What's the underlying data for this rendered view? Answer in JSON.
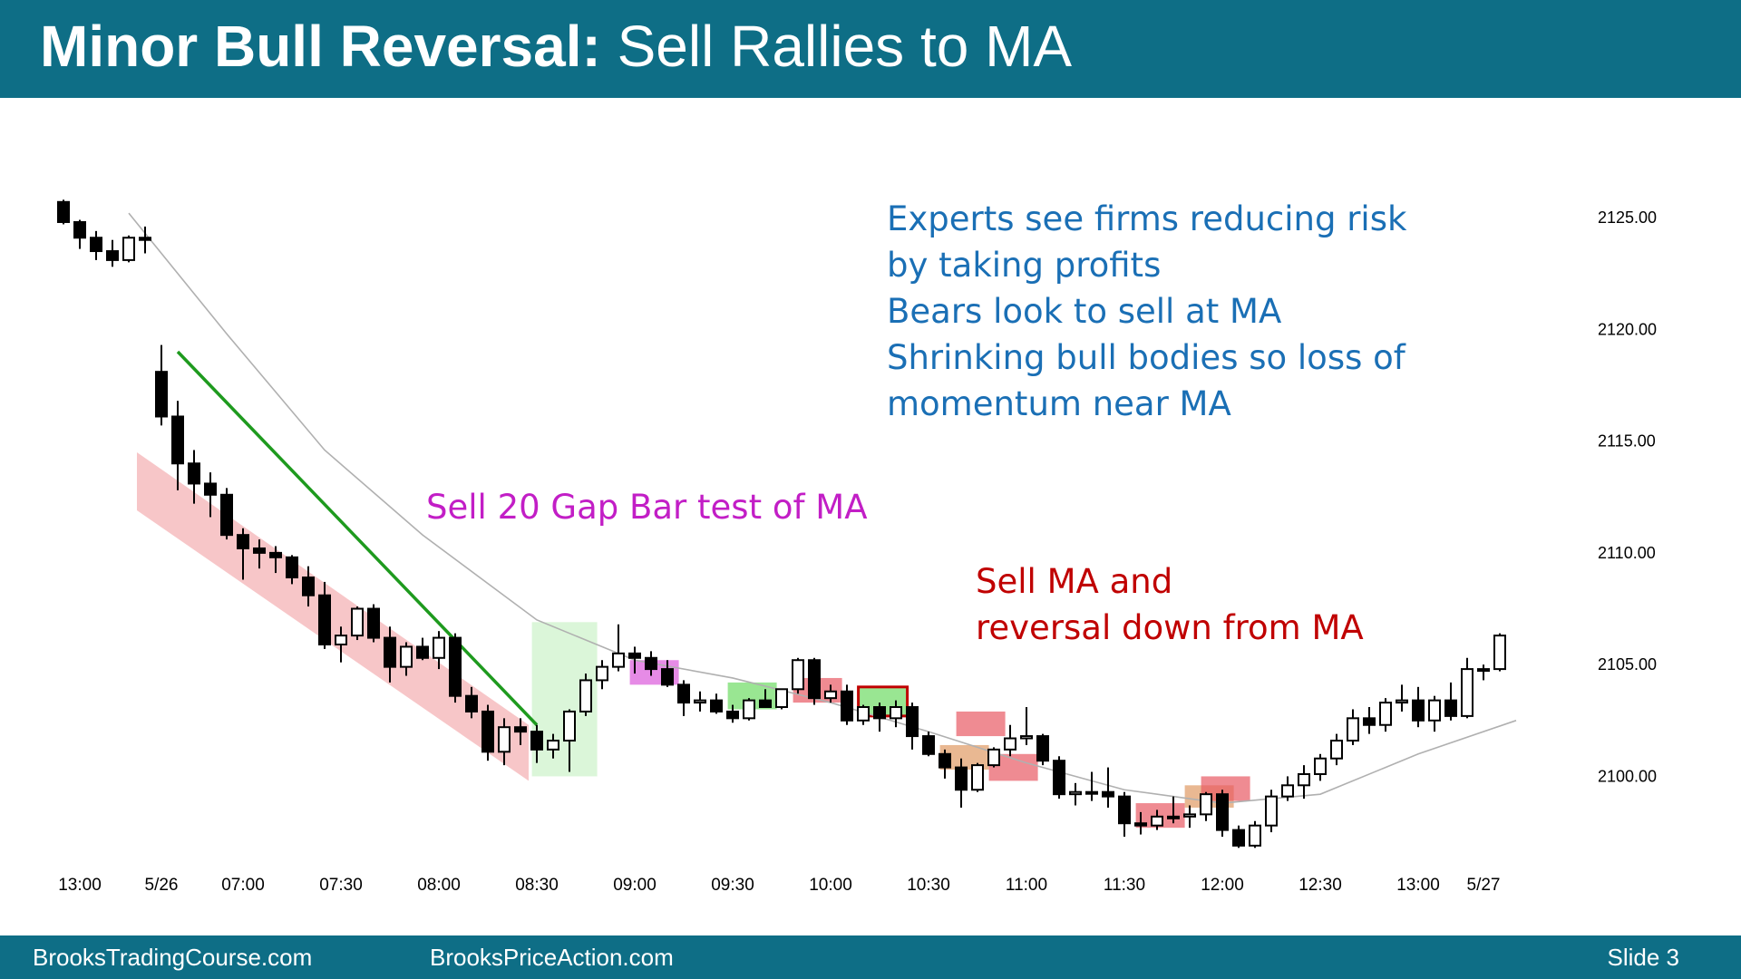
{
  "slide": {
    "title_bold": "Minor Bull Reversal:",
    "title_rest": " Sell Rallies to MA",
    "footer_left": "BrooksTradingCourse.com",
    "footer_mid": "BrooksPriceAction.com",
    "footer_right": "Slide  3",
    "colors": {
      "header": "#0e6e86",
      "annotation_blue": "#1a6fb5",
      "annotation_magenta": "#c21ec6",
      "annotation_red": "#c00000",
      "trendline": "#1e9a1e",
      "ma": "#b0b0b0"
    }
  },
  "annotations": {
    "experts": [
      "Experts see firms reducing risk",
      "by taking profits",
      "Bears look to sell at MA",
      "Shrinking bull bodies so loss of",
      "momentum near MA"
    ],
    "gap_bar": "Sell 20 Gap Bar test of MA",
    "sell_ma": [
      "Sell MA and",
      "reversal down from MA"
    ]
  },
  "chart_data": {
    "type": "candlestick",
    "y_ticks": [
      "2125.00",
      "2120.00",
      "2115.00",
      "2110.00",
      "2105.00",
      "2100.00"
    ],
    "ylim": [
      2095.8,
      2126.3
    ],
    "x_ticks": [
      {
        "label": "13:00",
        "bar": 1
      },
      {
        "label": "5/26",
        "bar": 6
      },
      {
        "label": "07:00",
        "bar": 11
      },
      {
        "label": "07:30",
        "bar": 17
      },
      {
        "label": "08:00",
        "bar": 23
      },
      {
        "label": "08:30",
        "bar": 29
      },
      {
        "label": "09:00",
        "bar": 35
      },
      {
        "label": "09:30",
        "bar": 41
      },
      {
        "label": "10:00",
        "bar": 47
      },
      {
        "label": "10:30",
        "bar": 53
      },
      {
        "label": "11:00",
        "bar": 59
      },
      {
        "label": "11:30",
        "bar": 65
      },
      {
        "label": "12:00",
        "bar": 71
      },
      {
        "label": "12:30",
        "bar": 77
      },
      {
        "label": "13:00",
        "bar": 83
      },
      {
        "label": "5/27",
        "bar": 87
      }
    ],
    "ohlc": [
      [
        2125.7,
        2125.8,
        2124.7,
        2124.8
      ],
      [
        2124.8,
        2124.9,
        2123.6,
        2124.1
      ],
      [
        2124.1,
        2124.4,
        2123.1,
        2123.5
      ],
      [
        2123.5,
        2124.0,
        2122.8,
        2123.1
      ],
      [
        2123.1,
        2124.2,
        2123.0,
        2124.1
      ],
      [
        2124.1,
        2124.6,
        2123.4,
        2124.0
      ],
      [
        2118.1,
        2119.3,
        2115.7,
        2116.1
      ],
      [
        2116.1,
        2116.8,
        2112.8,
        2114.0
      ],
      [
        2114.0,
        2114.6,
        2112.2,
        2113.1
      ],
      [
        2113.1,
        2113.6,
        2111.6,
        2112.6
      ],
      [
        2112.6,
        2112.9,
        2110.6,
        2110.8
      ],
      [
        2110.8,
        2111.1,
        2108.8,
        2110.2
      ],
      [
        2110.2,
        2110.6,
        2109.3,
        2110.0
      ],
      [
        2110.0,
        2110.3,
        2109.1,
        2109.8
      ],
      [
        2109.8,
        2109.9,
        2108.6,
        2108.9
      ],
      [
        2108.9,
        2109.4,
        2107.6,
        2108.1
      ],
      [
        2108.1,
        2108.7,
        2105.7,
        2105.9
      ],
      [
        2105.9,
        2106.7,
        2105.1,
        2106.3
      ],
      [
        2106.3,
        2107.6,
        2106.1,
        2107.5
      ],
      [
        2107.5,
        2107.7,
        2106.0,
        2106.2
      ],
      [
        2106.2,
        2106.7,
        2104.2,
        2104.9
      ],
      [
        2104.9,
        2106.0,
        2104.5,
        2105.8
      ],
      [
        2105.8,
        2106.2,
        2105.2,
        2105.3
      ],
      [
        2105.3,
        2106.5,
        2104.8,
        2106.2
      ],
      [
        2106.2,
        2106.4,
        2103.3,
        2103.6
      ],
      [
        2103.6,
        2104.0,
        2102.6,
        2102.9
      ],
      [
        2102.9,
        2103.2,
        2100.7,
        2101.1
      ],
      [
        2101.1,
        2102.6,
        2100.5,
        2102.2
      ],
      [
        2102.2,
        2102.6,
        2101.4,
        2102.0
      ],
      [
        2102.0,
        2102.3,
        2100.6,
        2101.2
      ],
      [
        2101.2,
        2101.9,
        2100.8,
        2101.6
      ],
      [
        2101.6,
        2103.0,
        2100.2,
        2102.9
      ],
      [
        2102.9,
        2104.6,
        2102.7,
        2104.3
      ],
      [
        2104.3,
        2105.2,
        2103.9,
        2104.9
      ],
      [
        2104.9,
        2106.8,
        2104.7,
        2105.5
      ],
      [
        2105.5,
        2105.8,
        2104.6,
        2105.3
      ],
      [
        2105.3,
        2105.6,
        2104.5,
        2104.8
      ],
      [
        2104.8,
        2105.2,
        2104.0,
        2104.1
      ],
      [
        2104.1,
        2104.3,
        2102.7,
        2103.3
      ],
      [
        2103.3,
        2103.8,
        2102.9,
        2103.4
      ],
      [
        2103.4,
        2103.7,
        2102.8,
        2102.9
      ],
      [
        2102.9,
        2103.2,
        2102.4,
        2102.6
      ],
      [
        2102.6,
        2103.5,
        2102.5,
        2103.4
      ],
      [
        2103.4,
        2103.9,
        2103.1,
        2103.1
      ],
      [
        2103.1,
        2103.9,
        2103.0,
        2103.9
      ],
      [
        2103.9,
        2105.3,
        2103.7,
        2105.2
      ],
      [
        2105.2,
        2105.3,
        2103.2,
        2103.5
      ],
      [
        2103.5,
        2104.1,
        2103.3,
        2103.8
      ],
      [
        2103.8,
        2104.1,
        2102.3,
        2102.5
      ],
      [
        2102.5,
        2103.2,
        2102.3,
        2103.1
      ],
      [
        2103.1,
        2103.3,
        2102.0,
        2102.6
      ],
      [
        2102.6,
        2103.4,
        2102.2,
        2103.1
      ],
      [
        2103.1,
        2103.3,
        2101.2,
        2101.8
      ],
      [
        2101.8,
        2102.0,
        2100.9,
        2101.0
      ],
      [
        2101.0,
        2101.2,
        2099.9,
        2100.4
      ],
      [
        2100.4,
        2100.8,
        2098.6,
        2099.4
      ],
      [
        2099.4,
        2100.6,
        2099.3,
        2100.5
      ],
      [
        2100.5,
        2101.3,
        2100.4,
        2101.2
      ],
      [
        2101.2,
        2102.3,
        2100.9,
        2101.7
      ],
      [
        2101.7,
        2103.1,
        2101.4,
        2101.8
      ],
      [
        2101.8,
        2101.9,
        2100.5,
        2100.7
      ],
      [
        2100.7,
        2100.9,
        2099.0,
        2099.2
      ],
      [
        2099.2,
        2099.7,
        2098.7,
        2099.3
      ],
      [
        2099.3,
        2100.2,
        2098.9,
        2099.3
      ],
      [
        2099.3,
        2100.4,
        2098.6,
        2099.1
      ],
      [
        2099.1,
        2099.3,
        2097.3,
        2097.9
      ],
      [
        2097.9,
        2098.4,
        2097.4,
        2097.8
      ],
      [
        2097.8,
        2098.5,
        2097.6,
        2098.2
      ],
      [
        2098.2,
        2099.1,
        2097.9,
        2098.2
      ],
      [
        2098.2,
        2098.7,
        2097.7,
        2098.3
      ],
      [
        2098.3,
        2099.3,
        2098.0,
        2099.2
      ],
      [
        2099.2,
        2099.4,
        2097.3,
        2097.6
      ],
      [
        2097.6,
        2097.8,
        2096.8,
        2096.9
      ],
      [
        2096.9,
        2098.0,
        2096.8,
        2097.8
      ],
      [
        2097.8,
        2099.4,
        2097.5,
        2099.1
      ],
      [
        2099.1,
        2100.0,
        2098.9,
        2099.6
      ],
      [
        2099.6,
        2100.5,
        2099.0,
        2100.1
      ],
      [
        2100.1,
        2101.0,
        2099.8,
        2100.8
      ],
      [
        2100.8,
        2101.9,
        2100.5,
        2101.6
      ],
      [
        2101.6,
        2103.0,
        2101.4,
        2102.6
      ],
      [
        2102.6,
        2103.1,
        2101.9,
        2102.3
      ],
      [
        2102.3,
        2103.5,
        2102.0,
        2103.3
      ],
      [
        2103.3,
        2104.1,
        2102.9,
        2103.4
      ],
      [
        2103.4,
        2104.0,
        2102.2,
        2102.5
      ],
      [
        2102.5,
        2103.6,
        2102.0,
        2103.4
      ],
      [
        2103.4,
        2104.2,
        2102.5,
        2102.7
      ],
      [
        2102.7,
        2105.3,
        2102.6,
        2104.8
      ],
      [
        2104.8,
        2105.0,
        2104.3,
        2104.8
      ],
      [
        2104.8,
        2106.4,
        2104.7,
        2106.3
      ]
    ],
    "moving_average": [
      [
        4,
        2125.2
      ],
      [
        10,
        2119.8
      ],
      [
        16,
        2114.6
      ],
      [
        22,
        2110.8
      ],
      [
        29,
        2107.0
      ],
      [
        35,
        2105.2
      ],
      [
        41,
        2104.4
      ],
      [
        47,
        2103.3
      ],
      [
        53,
        2102.0
      ],
      [
        59,
        2100.6
      ],
      [
        65,
        2099.4
      ],
      [
        71,
        2098.8
      ],
      [
        77,
        2099.2
      ],
      [
        83,
        2101.0
      ],
      [
        89,
        2102.5
      ]
    ],
    "trendline": [
      [
        7,
        2119.0
      ],
      [
        29,
        2102.3
      ]
    ],
    "highlights": [
      {
        "color": "red",
        "from_bar": 4.5,
        "to_bar": 28.5,
        "high_start": 2114.5,
        "low_start": 2111.9,
        "high_end": 2102.3,
        "low_end": 2099.8
      },
      {
        "color": "green",
        "from_bar": 28.7,
        "to_bar": 32.7,
        "high": 2106.9,
        "low": 2100.0
      },
      {
        "color": "magenta",
        "from_bar": 34.7,
        "to_bar": 37.7,
        "high": 2105.2,
        "low": 2104.1
      },
      {
        "color": "green",
        "from_bar": 40.7,
        "to_bar": 43.7,
        "high": 2104.2,
        "low": 2103.0
      },
      {
        "color": "red",
        "from_bar": 44.7,
        "to_bar": 47.7,
        "high": 2104.4,
        "low": 2103.3
      },
      {
        "color": "green",
        "from_bar": 48.7,
        "to_bar": 51.7,
        "high": 2104.0,
        "low": 2102.7,
        "outline": true
      },
      {
        "color": "orange",
        "from_bar": 53.7,
        "to_bar": 56.7,
        "high": 2101.4,
        "low": 2100.3
      },
      {
        "color": "red",
        "from_bar": 54.7,
        "to_bar": 57.7,
        "high": 2102.9,
        "low": 2101.8
      },
      {
        "color": "red",
        "from_bar": 56.7,
        "to_bar": 59.7,
        "high": 2101.0,
        "low": 2099.8
      },
      {
        "color": "red",
        "from_bar": 65.7,
        "to_bar": 68.7,
        "high": 2098.8,
        "low": 2097.7
      },
      {
        "color": "orange",
        "from_bar": 68.7,
        "to_bar": 71.7,
        "high": 2099.6,
        "low": 2098.6
      },
      {
        "color": "red",
        "from_bar": 69.7,
        "to_bar": 72.7,
        "high": 2100.0,
        "low": 2098.9
      }
    ]
  }
}
